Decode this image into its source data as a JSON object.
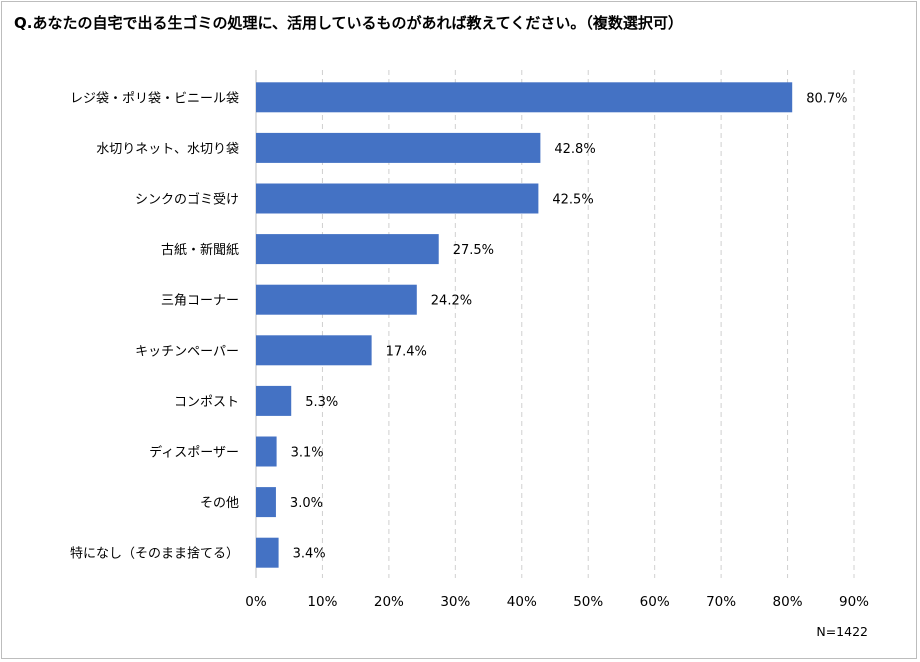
{
  "chart_data": {
    "type": "bar",
    "orientation": "horizontal",
    "title": "Q.あなたの自宅で出る生ゴミの処理に、活用しているものがあれば教えてください。（複数選択可）",
    "categories": [
      "レジ袋・ポリ袋・ビニール袋",
      "水切りネット、水切り袋",
      "シンクのゴミ受け",
      "古紙・新聞紙",
      "三角コーナー",
      "キッチンペーパー",
      "コンポスト",
      "ディスポーザー",
      "その他",
      "特になし（そのまま捨てる）"
    ],
    "values": [
      80.7,
      42.8,
      42.5,
      27.5,
      24.2,
      17.4,
      5.3,
      3.1,
      3.0,
      3.4
    ],
    "value_labels": [
      "80.7%",
      "42.8%",
      "42.5%",
      "27.5%",
      "24.2%",
      "17.4%",
      "5.3%",
      "3.1%",
      "3.0%",
      "3.4%"
    ],
    "xlim": [
      0,
      90
    ],
    "xticks": [
      "0%",
      "10%",
      "20%",
      "30%",
      "40%",
      "50%",
      "60%",
      "70%",
      "80%",
      "90%"
    ],
    "grid": "vertical dashed",
    "bar_color": "#4472c4",
    "note": "N=1422"
  }
}
